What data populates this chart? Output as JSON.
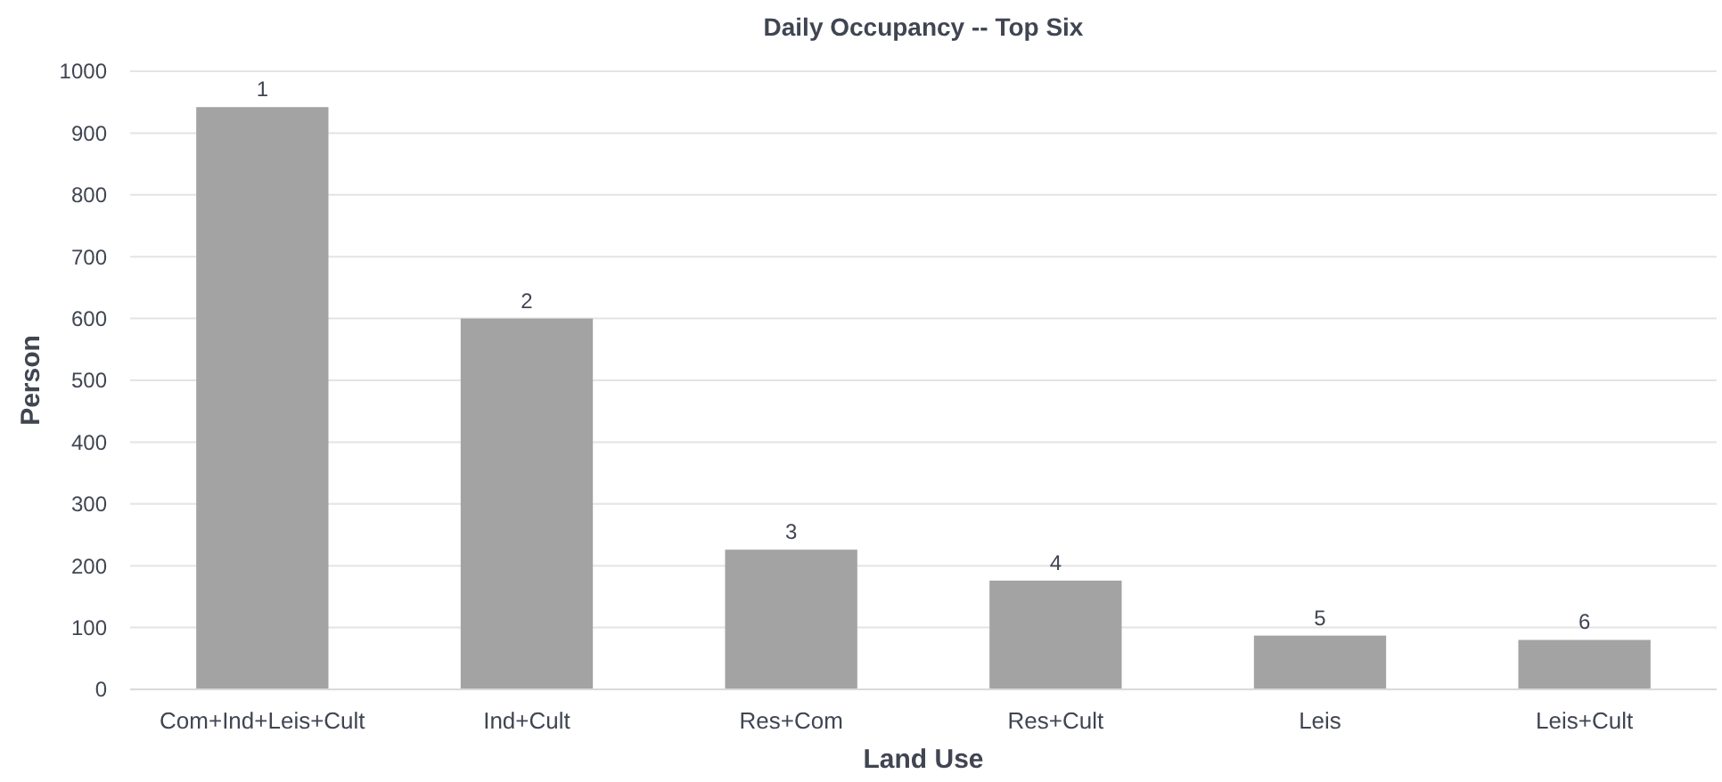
{
  "chart_data": {
    "type": "bar",
    "title": "Daily Occupancy -- Top Six",
    "xlabel": "Land Use",
    "ylabel": "Person",
    "categories": [
      "Com+Ind+Leis+Cult",
      "Ind+Cult",
      "Res+Com",
      "Res+Cult",
      "Leis",
      "Leis+Cult"
    ],
    "values": [
      942,
      600,
      226,
      176,
      87,
      80
    ],
    "color": "#a3a3a3",
    "annotations": [
      {
        "text": "1",
        "x": "Com+Ind+Leis+Cult",
        "y": 942
      },
      {
        "text": "2",
        "x": "Ind+Cult",
        "y": 600
      },
      {
        "text": "3",
        "x": "Res+Com",
        "y": 226
      },
      {
        "text": "4",
        "x": "Res+Cult",
        "y": 176
      },
      {
        "text": "5",
        "x": "Leis",
        "y": 87
      },
      {
        "text": "6",
        "x": "Leis+Cult",
        "y": 80
      }
    ],
    "ylim": [
      0,
      1000
    ],
    "yticks": [
      0,
      100,
      200,
      300,
      400,
      500,
      600,
      700,
      800,
      900,
      1000
    ],
    "grid": "y"
  }
}
